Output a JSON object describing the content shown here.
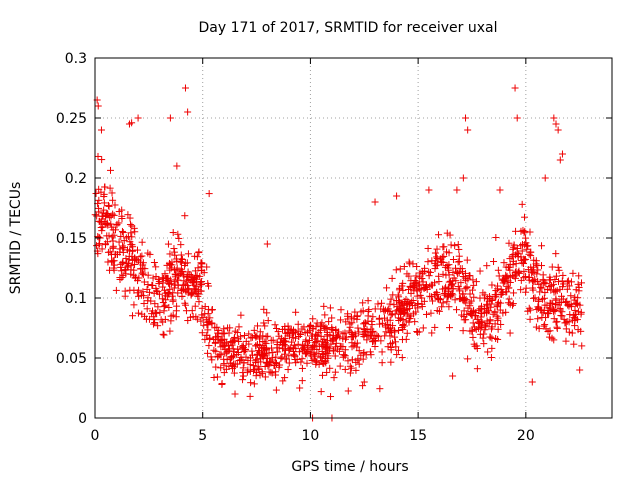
{
  "chart_data": {
    "type": "scatter",
    "title": "Day 171 of 2017, SRMTID for receiver uxal",
    "xlabel": "GPS time / hours",
    "ylabel": "SRMTID / TECUs",
    "xlim": [
      0,
      24
    ],
    "ylim": [
      0,
      0.3
    ],
    "x_ticks": [
      0,
      5,
      10,
      15,
      20
    ],
    "x_tick_labels": [
      "0",
      "5",
      "10",
      "15",
      "20"
    ],
    "y_ticks": [
      0,
      0.05,
      0.1,
      0.15,
      0.2,
      0.25,
      0.3
    ],
    "y_tick_labels": [
      "0",
      "0.05",
      "0.1",
      "0.15",
      "0.2",
      "0.25",
      "0.3"
    ],
    "grid": true,
    "marker": "plus",
    "color": "#ee0000",
    "series": [
      {
        "name": "SRMTID",
        "trend": [
          [
            0.0,
            0.17
          ],
          [
            0.5,
            0.16
          ],
          [
            1.0,
            0.15
          ],
          [
            1.5,
            0.14
          ],
          [
            2.0,
            0.125
          ],
          [
            2.5,
            0.11
          ],
          [
            3.0,
            0.1
          ],
          [
            3.5,
            0.115
          ],
          [
            4.0,
            0.12
          ],
          [
            4.5,
            0.11
          ],
          [
            5.0,
            0.105
          ],
          [
            5.5,
            0.065
          ],
          [
            6.0,
            0.055
          ],
          [
            7.0,
            0.05
          ],
          [
            8.0,
            0.055
          ],
          [
            9.0,
            0.06
          ],
          [
            10.0,
            0.06
          ],
          [
            11.0,
            0.06
          ],
          [
            12.0,
            0.065
          ],
          [
            13.0,
            0.07
          ],
          [
            14.0,
            0.085
          ],
          [
            15.0,
            0.1
          ],
          [
            16.0,
            0.12
          ],
          [
            17.0,
            0.11
          ],
          [
            18.0,
            0.08
          ],
          [
            19.0,
            0.1
          ],
          [
            19.5,
            0.135
          ],
          [
            20.0,
            0.13
          ],
          [
            20.5,
            0.11
          ],
          [
            21.0,
            0.1
          ],
          [
            22.0,
            0.095
          ],
          [
            22.6,
            0.095
          ]
        ],
        "x_range": [
          0.0,
          22.6
        ],
        "spread": 0.035,
        "seed": 171,
        "extra_points": [
          [
            0.1,
            0.265
          ],
          [
            0.15,
            0.26
          ],
          [
            1.6,
            0.245
          ],
          [
            1.7,
            0.246
          ],
          [
            2.0,
            0.25
          ],
          [
            3.5,
            0.25
          ],
          [
            4.2,
            0.275
          ],
          [
            4.3,
            0.255
          ],
          [
            5.3,
            0.187
          ],
          [
            8.0,
            0.145
          ],
          [
            17.2,
            0.25
          ],
          [
            17.3,
            0.24
          ],
          [
            19.5,
            0.275
          ],
          [
            19.6,
            0.25
          ],
          [
            21.3,
            0.25
          ],
          [
            21.4,
            0.245
          ],
          [
            21.5,
            0.24
          ],
          [
            21.6,
            0.215
          ],
          [
            21.7,
            0.22
          ],
          [
            17.1,
            0.2
          ],
          [
            14.0,
            0.185
          ],
          [
            15.5,
            0.19
          ],
          [
            16.8,
            0.19
          ],
          [
            20.9,
            0.2
          ],
          [
            0.3,
            0.24
          ],
          [
            3.8,
            0.21
          ],
          [
            13.0,
            0.18
          ],
          [
            18.8,
            0.19
          ],
          [
            10.1,
            0.0
          ],
          [
            11.0,
            0.0
          ],
          [
            6.5,
            0.02
          ],
          [
            9.5,
            0.025
          ],
          [
            10.5,
            0.022
          ],
          [
            7.2,
            0.018
          ],
          [
            16.6,
            0.035
          ],
          [
            20.3,
            0.03
          ],
          [
            22.5,
            0.04
          ],
          [
            12.5,
            0.03
          ]
        ]
      }
    ]
  }
}
